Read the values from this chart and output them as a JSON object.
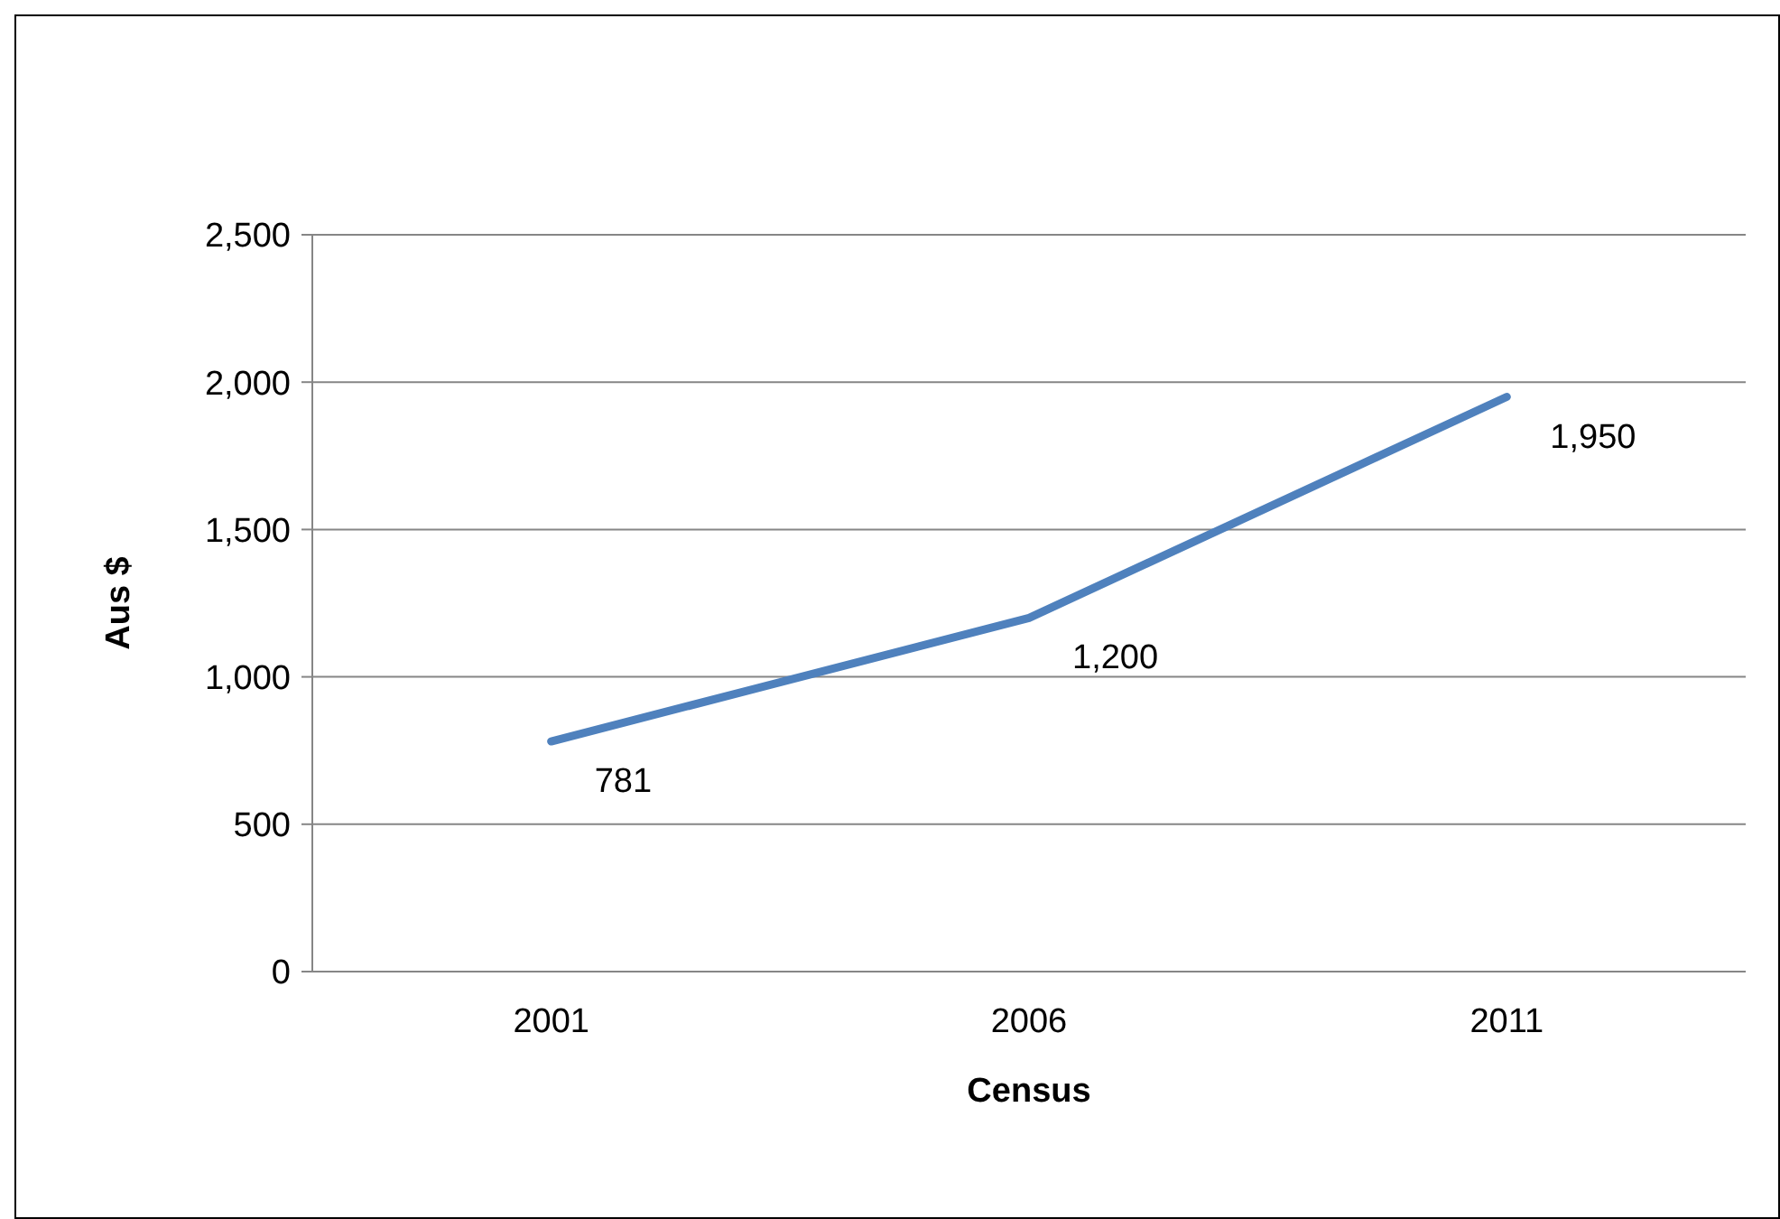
{
  "chart_data": {
    "type": "line",
    "xlabel": "Census",
    "ylabel": "Aus $",
    "categories": [
      "2001",
      "2006",
      "2011"
    ],
    "series": [
      {
        "color": "#4f81bd",
        "values": [
          781,
          1200,
          1950
        ],
        "value_labels": [
          "781",
          "1,200",
          "1,950"
        ]
      }
    ],
    "ylim": [
      0,
      2500
    ],
    "yticks": [
      0,
      500,
      {
        "value": 1000,
        "label": "1,000"
      },
      {
        "value": 1500,
        "label": "1,500"
      },
      {
        "value": 2000,
        "label": "2,000"
      },
      {
        "value": 2500,
        "label": "2,500"
      }
    ],
    "grid": "y",
    "marker": "none",
    "line_style": "solid"
  }
}
